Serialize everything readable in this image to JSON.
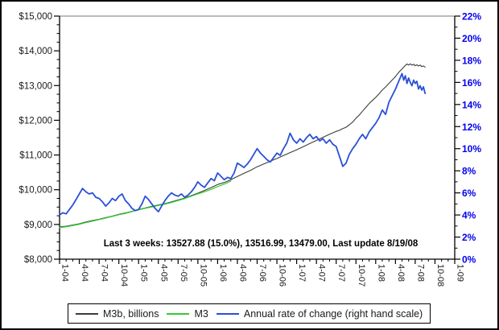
{
  "chart_data": {
    "type": "line",
    "title": "",
    "annotation": "Last 3 weeks: 13527.88 (15.0%), 13516.99, 13479.00, Last update 8/19/08",
    "left_axis": {
      "labels": [
        "$15,000",
        "$14,000",
        "$13,000",
        "$12,000",
        "$11,000",
        "$10,000",
        "$9,000",
        "$8,000"
      ],
      "values": [
        15000,
        14000,
        13000,
        12000,
        11000,
        10000,
        9000,
        8000
      ],
      "min": 8000,
      "max": 15000,
      "minor_step": 250,
      "color": "#1a1a1a"
    },
    "right_axis": {
      "labels": [
        "22%",
        "20%",
        "18%",
        "16%",
        "14%",
        "12%",
        "10%",
        "8%",
        "6%",
        "4%",
        "2%",
        "0%"
      ],
      "values": [
        22,
        20,
        18,
        16,
        14,
        12,
        10,
        8,
        6,
        4,
        2,
        0
      ],
      "min": 0,
      "max": 22,
      "minor_step": 1,
      "color": "#0000ee"
    },
    "x_axis": {
      "labels": [
        "1-04",
        "4-04",
        "7-04",
        "10-04",
        "1-05",
        "4-05",
        "7-05",
        "10-05",
        "1-06",
        "4-06",
        "7-06",
        "10-06",
        "1-07",
        "4-07",
        "7-07",
        "10-07",
        "1-08",
        "4-08",
        "7-08",
        "10-08",
        "1-09"
      ],
      "label_months": [
        0,
        3,
        6,
        9,
        12,
        15,
        18,
        21,
        24,
        27,
        30,
        33,
        36,
        39,
        42,
        45,
        48,
        51,
        54,
        57,
        60
      ],
      "min_month": 0,
      "max_month": 60,
      "minor_step": 1
    },
    "grid": {
      "top_line_color": "#909090"
    },
    "series": [
      {
        "name": "M3b, billions",
        "axis": "left",
        "color": "#3c3c3c",
        "width": 1.1,
        "points": [
          [
            0,
            8930
          ],
          [
            1,
            8950
          ],
          [
            2,
            8985
          ],
          [
            3,
            9020
          ],
          [
            4,
            9070
          ],
          [
            5,
            9110
          ],
          [
            6,
            9150
          ],
          [
            7,
            9195
          ],
          [
            8,
            9240
          ],
          [
            9,
            9290
          ],
          [
            10,
            9330
          ],
          [
            11,
            9380
          ],
          [
            12,
            9430
          ],
          [
            13,
            9475
          ],
          [
            14,
            9520
          ],
          [
            15,
            9560
          ],
          [
            16,
            9600
          ],
          [
            17,
            9650
          ],
          [
            18,
            9705
          ],
          [
            19,
            9760
          ],
          [
            20,
            9830
          ],
          [
            21,
            9900
          ],
          [
            22,
            9980
          ],
          [
            23,
            10060
          ],
          [
            24,
            10150
          ],
          [
            25,
            10210
          ],
          [
            26,
            10290
          ],
          [
            27,
            10380
          ],
          [
            28,
            10470
          ],
          [
            29,
            10560
          ],
          [
            30,
            10660
          ],
          [
            31,
            10740
          ],
          [
            32,
            10820
          ],
          [
            33,
            10900
          ],
          [
            34,
            10985
          ],
          [
            35,
            11070
          ],
          [
            36,
            11150
          ],
          [
            37,
            11240
          ],
          [
            38,
            11330
          ],
          [
            39,
            11420
          ],
          [
            40,
            11510
          ],
          [
            41,
            11600
          ],
          [
            42,
            11680
          ],
          [
            42.5,
            11710
          ],
          [
            43,
            11760
          ],
          [
            43.5,
            11800
          ],
          [
            44,
            11870
          ],
          [
            44.5,
            11950
          ],
          [
            45,
            12060
          ],
          [
            45.5,
            12150
          ],
          [
            46,
            12260
          ],
          [
            46.5,
            12370
          ],
          [
            47,
            12480
          ],
          [
            47.5,
            12570
          ],
          [
            48,
            12660
          ],
          [
            48.5,
            12760
          ],
          [
            49,
            12870
          ],
          [
            49.5,
            12960
          ],
          [
            50,
            13060
          ],
          [
            50.5,
            13160
          ],
          [
            51,
            13260
          ],
          [
            51.5,
            13380
          ],
          [
            52,
            13480
          ],
          [
            52.5,
            13580
          ],
          [
            52.75,
            13620
          ],
          [
            53,
            13590
          ],
          [
            53.25,
            13625
          ],
          [
            53.5,
            13585
          ],
          [
            53.75,
            13615
          ],
          [
            54,
            13570
          ],
          [
            54.25,
            13600
          ],
          [
            54.5,
            13560
          ],
          [
            54.75,
            13590
          ],
          [
            55,
            13545
          ],
          [
            55.25,
            13565
          ],
          [
            55.5,
            13528
          ]
        ]
      },
      {
        "name": "M3",
        "axis": "left",
        "color": "#33cc33",
        "width": 1.3,
        "points": [
          [
            0,
            8910
          ],
          [
            1,
            8935
          ],
          [
            2,
            8970
          ],
          [
            3,
            9005
          ],
          [
            4,
            9055
          ],
          [
            5,
            9095
          ],
          [
            6,
            9140
          ],
          [
            7,
            9185
          ],
          [
            8,
            9230
          ],
          [
            9,
            9280
          ],
          [
            10,
            9320
          ],
          [
            11,
            9370
          ],
          [
            12,
            9420
          ],
          [
            13,
            9465
          ],
          [
            14,
            9505
          ],
          [
            15,
            9545
          ],
          [
            16,
            9585
          ],
          [
            17,
            9635
          ],
          [
            18,
            9690
          ],
          [
            19,
            9745
          ],
          [
            20,
            9815
          ],
          [
            21,
            9880
          ],
          [
            22,
            9940
          ],
          [
            23,
            10010
          ],
          [
            24,
            10090
          ],
          [
            25,
            10160
          ],
          [
            26,
            10250
          ]
        ]
      },
      {
        "name": "Annual rate of change (right hand scale)",
        "axis": "right",
        "color": "#2a50d8",
        "width": 1.8,
        "points": [
          [
            0,
            4.0
          ],
          [
            0.5,
            4.2
          ],
          [
            1,
            4.1
          ],
          [
            1.5,
            4.5
          ],
          [
            2,
            4.9
          ],
          [
            2.5,
            5.4
          ],
          [
            3,
            5.9
          ],
          [
            3.5,
            6.4
          ],
          [
            4,
            6.1
          ],
          [
            4.5,
            5.9
          ],
          [
            5,
            6.0
          ],
          [
            5.5,
            5.6
          ],
          [
            6,
            5.5
          ],
          [
            6.5,
            5.2
          ],
          [
            7,
            4.8
          ],
          [
            7.5,
            5.1
          ],
          [
            8,
            5.5
          ],
          [
            8.5,
            5.3
          ],
          [
            9,
            5.7
          ],
          [
            9.5,
            5.9
          ],
          [
            10,
            5.3
          ],
          [
            10.5,
            5.0
          ],
          [
            11,
            4.6
          ],
          [
            11.5,
            4.4
          ],
          [
            12,
            4.5
          ],
          [
            12.5,
            5.0
          ],
          [
            13,
            5.7
          ],
          [
            13.5,
            5.4
          ],
          [
            14,
            5.0
          ],
          [
            14.5,
            4.6
          ],
          [
            15,
            4.3
          ],
          [
            15.5,
            4.8
          ],
          [
            16,
            5.3
          ],
          [
            16.5,
            5.7
          ],
          [
            17,
            6.0
          ],
          [
            17.5,
            5.8
          ],
          [
            18,
            5.7
          ],
          [
            18.5,
            5.9
          ],
          [
            19,
            5.6
          ],
          [
            19.5,
            5.8
          ],
          [
            20,
            6.1
          ],
          [
            20.5,
            6.5
          ],
          [
            21,
            7.0
          ],
          [
            21.5,
            6.7
          ],
          [
            22,
            6.5
          ],
          [
            22.5,
            6.9
          ],
          [
            23,
            7.3
          ],
          [
            23.5,
            7.1
          ],
          [
            24,
            7.8
          ],
          [
            24.5,
            7.5
          ],
          [
            25,
            7.2
          ],
          [
            25.5,
            7.4
          ],
          [
            26,
            7.3
          ],
          [
            26.5,
            7.8
          ],
          [
            27,
            8.7
          ],
          [
            27.5,
            8.5
          ],
          [
            28,
            8.3
          ],
          [
            28.5,
            8.6
          ],
          [
            29,
            9.0
          ],
          [
            29.5,
            9.5
          ],
          [
            30,
            10.0
          ],
          [
            30.5,
            9.6
          ],
          [
            31,
            9.3
          ],
          [
            31.5,
            9.0
          ],
          [
            32,
            8.8
          ],
          [
            32.5,
            9.2
          ],
          [
            33,
            9.6
          ],
          [
            33.5,
            9.4
          ],
          [
            34,
            10.0
          ],
          [
            34.5,
            10.5
          ],
          [
            35,
            11.4
          ],
          [
            35.5,
            10.8
          ],
          [
            36,
            10.5
          ],
          [
            36.5,
            10.9
          ],
          [
            37,
            10.6
          ],
          [
            37.5,
            11.0
          ],
          [
            38,
            11.3
          ],
          [
            38.5,
            10.9
          ],
          [
            39,
            11.1
          ],
          [
            39.5,
            10.7
          ],
          [
            40,
            10.9
          ],
          [
            40.5,
            10.5
          ],
          [
            41,
            10.8
          ],
          [
            41.5,
            10.4
          ],
          [
            42,
            10.2
          ],
          [
            42.5,
            9.3
          ],
          [
            43,
            8.4
          ],
          [
            43.5,
            8.7
          ],
          [
            44,
            9.5
          ],
          [
            44.5,
            10.0
          ],
          [
            45,
            10.4
          ],
          [
            45.5,
            10.9
          ],
          [
            46,
            11.3
          ],
          [
            46.5,
            10.9
          ],
          [
            47,
            11.5
          ],
          [
            47.5,
            11.9
          ],
          [
            48,
            12.3
          ],
          [
            48.5,
            12.8
          ],
          [
            49,
            13.5
          ],
          [
            49.5,
            13.1
          ],
          [
            50,
            14.2
          ],
          [
            50.5,
            14.8
          ],
          [
            51,
            15.4
          ],
          [
            51.5,
            16.1
          ],
          [
            52,
            16.8
          ],
          [
            52.25,
            16.2
          ],
          [
            52.5,
            16.6
          ],
          [
            52.75,
            15.9
          ],
          [
            53,
            16.4
          ],
          [
            53.25,
            16.0
          ],
          [
            53.5,
            15.7
          ],
          [
            53.75,
            16.2
          ],
          [
            54,
            15.9
          ],
          [
            54.25,
            16.1
          ],
          [
            54.5,
            15.4
          ],
          [
            54.75,
            15.7
          ],
          [
            55,
            15.3
          ],
          [
            55.25,
            15.6
          ],
          [
            55.5,
            15.0
          ]
        ]
      }
    ],
    "legend": {
      "position": "bottom",
      "items": [
        {
          "label": "M3b, billions",
          "color": "#3c3c3c"
        },
        {
          "label": "M3",
          "color": "#33cc33"
        },
        {
          "label": "Annual rate of change (right hand scale)",
          "color": "#2a50d8"
        }
      ]
    }
  }
}
